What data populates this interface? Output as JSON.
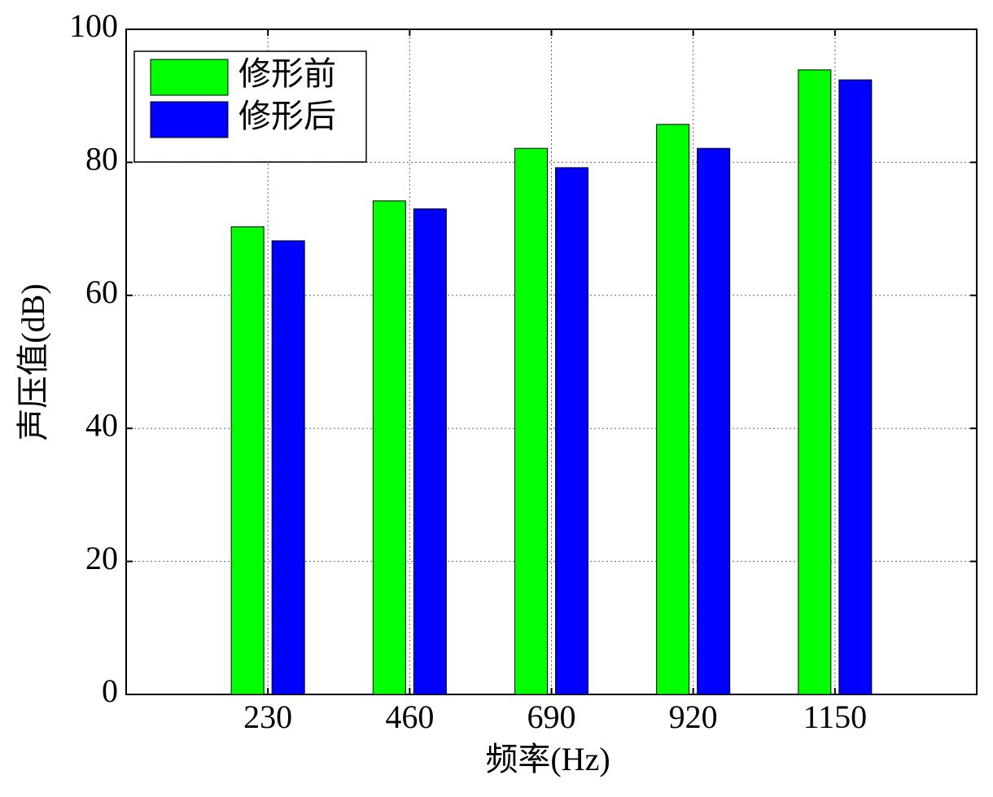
{
  "chart_data": {
    "type": "bar",
    "x": [
      230,
      460,
      690,
      920,
      1150
    ],
    "series": [
      {
        "name": "修形前",
        "color": "#00ff00",
        "values": [
          70.3,
          74.2,
          82.1,
          85.7,
          93.9
        ]
      },
      {
        "name": "修形后",
        "color": "#0000ff",
        "values": [
          68.2,
          73.0,
          79.2,
          82.1,
          92.4
        ]
      }
    ],
    "xlabel": "频率(Hz)",
    "ylabel": "声压值(dB)",
    "xlim": [
      0,
      1380
    ],
    "xticks": [
      230,
      460,
      690,
      920,
      1150
    ],
    "ylim": [
      0,
      100
    ],
    "yticks": [
      0,
      20,
      40,
      60,
      80,
      100
    ],
    "grid": true,
    "legend_position": "upper left"
  }
}
